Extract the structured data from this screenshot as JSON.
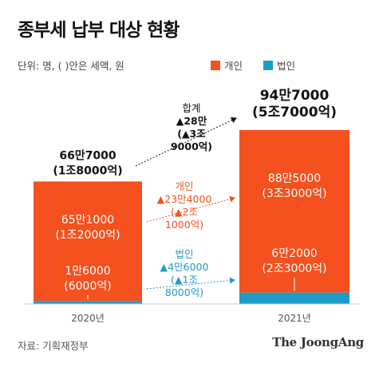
{
  "title": "종부세 납부 대상 현황",
  "unit_note": "단위: 명, ( )안은 세액, 원",
  "legend": [
    {
      "label": "개인",
      "color": "#f4511e"
    },
    {
      "label": "법인",
      "color": "#1e9bc7"
    }
  ],
  "colors": {
    "individual": "#f4511e",
    "corporate": "#1e9bc7",
    "total_annotation": "#111111"
  },
  "chart_data": {
    "type": "bar",
    "stacked": true,
    "categories": [
      "2020년",
      "2021년"
    ],
    "series": [
      {
        "name": "법인",
        "values": [
          16000,
          62000
        ],
        "labels": [
          "1만6000",
          "6만2000"
        ],
        "tax_labels": [
          "(6000억)",
          "(2조3000억)"
        ]
      },
      {
        "name": "개인",
        "values": [
          651000,
          885000
        ],
        "labels": [
          "65만1000",
          "88만5000"
        ],
        "tax_labels": [
          "(1조2000억)",
          "(3조3000억)"
        ]
      }
    ],
    "totals": {
      "labels": [
        "66만7000",
        "94만7000"
      ],
      "tax_labels": [
        "(1조8000억)",
        "(5조7000억)"
      ]
    },
    "annotations": {
      "total": {
        "title": "합계",
        "lines": [
          "▲28만",
          "(▲3조",
          "9000억)"
        ]
      },
      "individual": {
        "title": "개인",
        "lines": [
          "▲23만4000",
          "(▲2조",
          "1000억)"
        ]
      },
      "corporate": {
        "title": "법인",
        "lines": [
          "▲4만6000",
          "(▲1조",
          "8000억)"
        ]
      }
    }
  },
  "source": "자료: 기획재정부",
  "brand": "The JoongAng"
}
